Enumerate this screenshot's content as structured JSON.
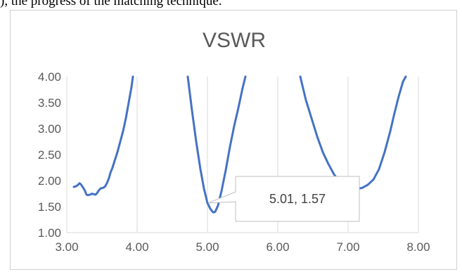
{
  "top_caption": "), the progress of the matching technique.",
  "chart_data": {
    "type": "line",
    "title": "VSWR",
    "xlabel": "",
    "ylabel": "",
    "xlim": [
      3.0,
      8.0
    ],
    "ylim": [
      1.0,
      4.0
    ],
    "x_ticks": [
      "3.00",
      "4.00",
      "5.00",
      "6.00",
      "7.00",
      "8.00"
    ],
    "y_ticks": [
      "1.00",
      "1.50",
      "2.00",
      "2.50",
      "3.00",
      "3.50",
      "4.00"
    ],
    "grid": "vertical",
    "legend": "none",
    "line_color": "#4472C4",
    "series": [
      {
        "x": [
          3.1,
          3.13,
          3.16,
          3.18,
          3.2,
          3.23,
          3.26,
          3.28,
          3.3,
          3.33,
          3.36,
          3.38,
          3.41,
          3.43,
          3.46,
          3.48,
          3.51,
          3.54,
          3.57,
          3.6,
          3.62,
          3.65,
          3.68,
          3.72,
          3.76,
          3.8,
          3.84,
          3.88,
          3.92,
          3.94
        ],
        "y": [
          1.88,
          1.89,
          1.92,
          1.95,
          1.93,
          1.87,
          1.8,
          1.73,
          1.72,
          1.73,
          1.75,
          1.74,
          1.73,
          1.76,
          1.82,
          1.85,
          1.86,
          1.88,
          1.95,
          2.05,
          2.15,
          2.25,
          2.38,
          2.55,
          2.75,
          2.95,
          3.2,
          3.5,
          3.8,
          4.0
        ]
      },
      {
        "x": [
          4.72,
          4.78,
          4.84,
          4.9,
          4.95,
          5.0,
          5.04,
          5.08,
          5.11,
          5.15,
          5.2,
          5.26,
          5.32,
          5.38,
          5.44,
          5.5,
          5.54
        ],
        "y": [
          4.0,
          3.35,
          2.75,
          2.22,
          1.85,
          1.57,
          1.46,
          1.39,
          1.4,
          1.52,
          1.8,
          2.2,
          2.65,
          3.05,
          3.4,
          3.78,
          4.0
        ]
      },
      {
        "x": [
          6.32,
          6.4,
          6.48,
          6.56,
          6.64,
          6.72,
          6.8,
          6.88,
          6.94,
          7.0,
          7.05,
          7.12,
          7.2,
          7.28,
          7.36,
          7.44,
          7.52,
          7.6,
          7.66,
          7.72,
          7.78,
          7.82
        ],
        "y": [
          4.0,
          3.55,
          3.2,
          2.85,
          2.55,
          2.32,
          2.12,
          1.98,
          1.92,
          1.87,
          1.85,
          1.84,
          1.86,
          1.92,
          2.02,
          2.22,
          2.55,
          2.95,
          3.3,
          3.62,
          3.9,
          4.0
        ]
      }
    ],
    "annotations": [
      {
        "text": "5.01, 1.57",
        "x": 5.01,
        "y": 1.57
      }
    ]
  }
}
